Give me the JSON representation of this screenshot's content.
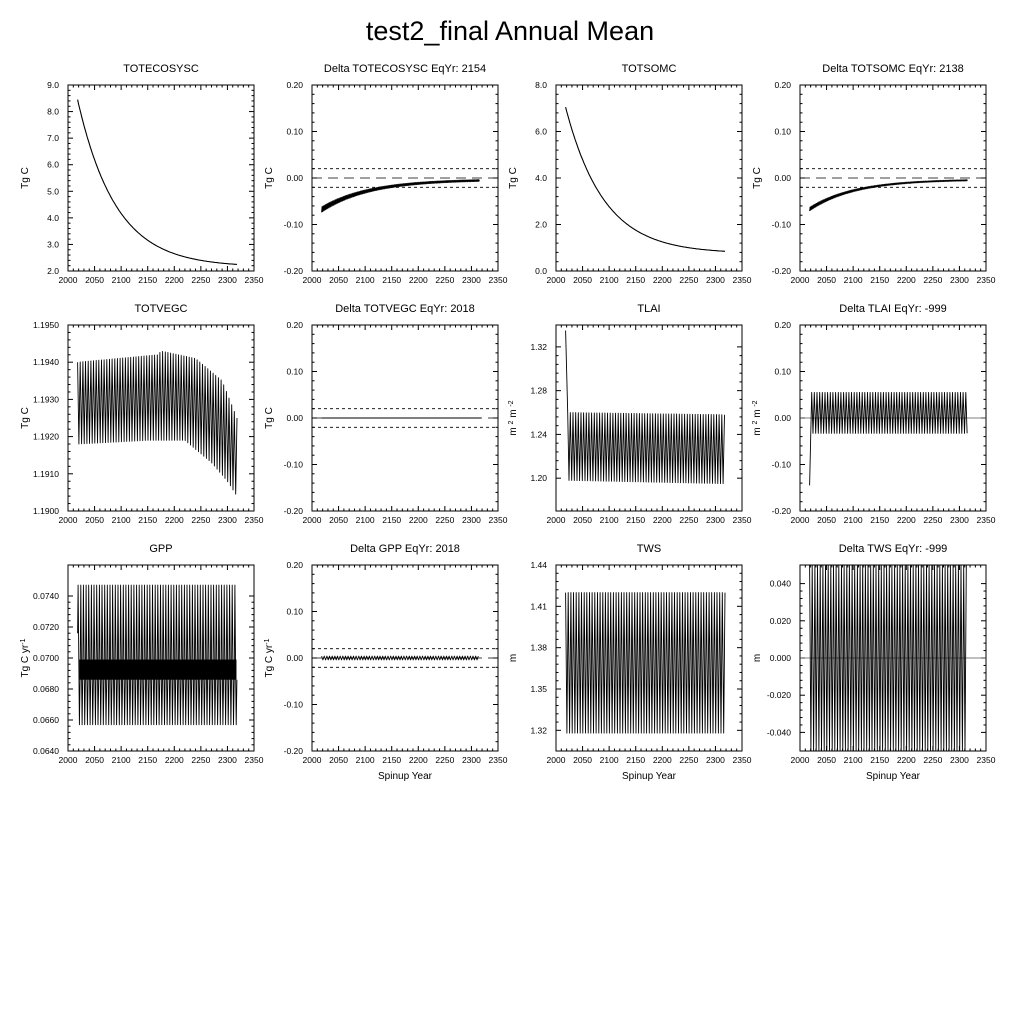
{
  "figure": {
    "title": "test2_final Annual Mean"
  },
  "chart_data": [
    {
      "type": "line",
      "title": "TOTECOSYSC",
      "ylabel": "Tg C",
      "xlabel": "",
      "xlim": [
        2000,
        2350
      ],
      "ylim": [
        2.0,
        9.0
      ],
      "xticks": [
        "2000",
        "2050",
        "2100",
        "2150",
        "2200",
        "2250",
        "2300",
        "2350"
      ],
      "yticks": [
        "2.0",
        "3.0",
        "4.0",
        "5.0",
        "6.0",
        "7.0",
        "8.0",
        "9.0"
      ],
      "series": [
        {
          "kind": "exp_decay",
          "x_start": 2018,
          "x_end": 2318,
          "y_start": 8.45,
          "y_end": 2.38,
          "asymptote": 2.15,
          "tau": 72
        }
      ]
    },
    {
      "type": "line",
      "title": "Delta TOTECOSYSC EqYr: 2154",
      "ylabel": "Tg C",
      "xlabel": "",
      "xlim": [
        2000,
        2350
      ],
      "ylim": [
        -0.2,
        0.2
      ],
      "xticks": [
        "2000",
        "2050",
        "2100",
        "2150",
        "2200",
        "2250",
        "2300",
        "2350"
      ],
      "yticks": [
        "-0.20",
        "-0.10",
        "0.00",
        "0.10",
        "0.20"
      ],
      "ref_lines": [
        0.02,
        0.0,
        -0.02
      ],
      "series": [
        {
          "kind": "decay_band",
          "x_start": 2018,
          "x_end": 2315,
          "y_start": -0.068,
          "y_end": -0.003,
          "tau": 90,
          "amp": 0.006
        }
      ]
    },
    {
      "type": "line",
      "title": "TOTSOMC",
      "ylabel": "Tg C",
      "xlabel": "",
      "xlim": [
        2000,
        2350
      ],
      "ylim": [
        0.0,
        8.0
      ],
      "xticks": [
        "2000",
        "2050",
        "2100",
        "2150",
        "2200",
        "2250",
        "2300",
        "2350"
      ],
      "yticks": [
        "0.0",
        "2.0",
        "4.0",
        "6.0",
        "8.0"
      ],
      "series": [
        {
          "kind": "exp_decay",
          "x_start": 2018,
          "x_end": 2318,
          "y_start": 7.05,
          "y_end": 0.98,
          "asymptote": 0.75,
          "tau": 72
        }
      ]
    },
    {
      "type": "line",
      "title": "Delta TOTSOMC EqYr: 2138",
      "ylabel": "Tg C",
      "xlabel": "",
      "xlim": [
        2000,
        2350
      ],
      "ylim": [
        -0.2,
        0.2
      ],
      "xticks": [
        "2000",
        "2050",
        "2100",
        "2150",
        "2200",
        "2250",
        "2300",
        "2350"
      ],
      "yticks": [
        "-0.20",
        "-0.10",
        "0.00",
        "0.10",
        "0.20"
      ],
      "ref_lines": [
        0.02,
        0.0,
        -0.02
      ],
      "series": [
        {
          "kind": "decay_band",
          "x_start": 2018,
          "x_end": 2315,
          "y_start": -0.067,
          "y_end": -0.003,
          "tau": 85,
          "amp": 0.004
        }
      ]
    },
    {
      "type": "line",
      "title": "TOTVEGC",
      "ylabel": "Tg C",
      "xlabel": "",
      "xlim": [
        2000,
        2350
      ],
      "ylim": [
        1.19,
        1.195
      ],
      "xticks": [
        "2000",
        "2050",
        "2100",
        "2150",
        "2200",
        "2250",
        "2300",
        "2350"
      ],
      "yticks": [
        "1.1900",
        "1.1910",
        "1.1920",
        "1.1930",
        "1.1940",
        "1.1950"
      ],
      "series": [
        {
          "kind": "sawtooth",
          "x_start": 2018,
          "x_end": 2318,
          "period": 5,
          "upper": [
            [
              2018,
              1.194
            ],
            [
              2170,
              1.1942
            ],
            [
              2175,
              1.1943
            ],
            [
              2240,
              1.1941
            ],
            [
              2290,
              1.1935
            ],
            [
              2318,
              1.1925
            ]
          ],
          "lower": [
            [
              2018,
              1.1918
            ],
            [
              2150,
              1.1919
            ],
            [
              2220,
              1.1919
            ],
            [
              2270,
              1.1913
            ],
            [
              2300,
              1.1908
            ],
            [
              2318,
              1.1904
            ]
          ]
        }
      ]
    },
    {
      "type": "line",
      "title": "Delta TOTVEGC EqYr: 2018",
      "ylabel": "Tg C",
      "xlabel": "",
      "xlim": [
        2000,
        2350
      ],
      "ylim": [
        -0.2,
        0.2
      ],
      "xticks": [
        "2000",
        "2050",
        "2100",
        "2150",
        "2200",
        "2250",
        "2300",
        "2350"
      ],
      "yticks": [
        "-0.20",
        "-0.10",
        "0.00",
        "0.10",
        "0.20"
      ],
      "ref_lines": [
        0.02,
        0.0,
        -0.02
      ],
      "series": [
        {
          "kind": "flat",
          "x_start": 2018,
          "x_end": 2318,
          "y": 0.0
        }
      ]
    },
    {
      "type": "line",
      "title": "TLAI",
      "ylabel": "m 2 m-2",
      "ylabel_parts": [
        "m",
        "2",
        "m",
        "-2"
      ],
      "xlabel": "",
      "xlim": [
        2000,
        2350
      ],
      "ylim": [
        1.17,
        1.34
      ],
      "xticks": [
        "2000",
        "2050",
        "2100",
        "2150",
        "2200",
        "2250",
        "2300",
        "2350"
      ],
      "yticks": [
        "1.20",
        "1.24",
        "1.28",
        "1.32"
      ],
      "ytick_values": [
        1.2,
        1.24,
        1.28,
        1.32
      ],
      "series": [
        {
          "kind": "sawtooth",
          "x_start": 2022,
          "x_end": 2318,
          "period": 5,
          "spike": [
            2018,
            1.335
          ],
          "upper": [
            [
              2022,
              1.26
            ],
            [
              2318,
              1.258
            ]
          ],
          "lower": [
            [
              2022,
              1.198
            ],
            [
              2318,
              1.195
            ]
          ]
        }
      ]
    },
    {
      "type": "line",
      "title": "Delta TLAI EqYr: -999",
      "ylabel": "m 2 m-2",
      "ylabel_parts": [
        "m",
        "2",
        "m",
        "-2"
      ],
      "xlabel": "",
      "xlim": [
        2000,
        2350
      ],
      "ylim": [
        -0.2,
        0.2
      ],
      "xticks": [
        "2000",
        "2050",
        "2100",
        "2150",
        "2200",
        "2250",
        "2300",
        "2350"
      ],
      "yticks": [
        "-0.20",
        "-0.10",
        "0.00",
        "0.10",
        "0.20"
      ],
      "ref_lines": [
        0.0
      ],
      "series": [
        {
          "kind": "sawtooth",
          "x_start": 2022,
          "x_end": 2315,
          "period": 5,
          "spike": [
            2018,
            -0.145
          ],
          "upper": [
            [
              2022,
              0.055
            ],
            [
              2315,
              0.055
            ]
          ],
          "lower": [
            [
              2022,
              -0.033
            ],
            [
              2315,
              -0.033
            ]
          ]
        }
      ]
    },
    {
      "type": "line",
      "title": "GPP",
      "ylabel": "Tg C yr-1",
      "ylabel_parts": [
        "Tg C yr",
        "-1"
      ],
      "xlabel": "",
      "xlim": [
        2000,
        2350
      ],
      "ylim": [
        0.064,
        0.076
      ],
      "xticks": [
        "2000",
        "2050",
        "2100",
        "2150",
        "2200",
        "2250",
        "2300",
        "2350"
      ],
      "yticks": [
        "0.0640",
        "0.0660",
        "0.0680",
        "0.0700",
        "0.0720",
        "0.0740"
      ],
      "series": [
        {
          "kind": "gpp",
          "x_start": 2018,
          "x_end": 2318,
          "period": 5,
          "upper": 0.0747,
          "lower": 0.0657,
          "band": [
            0.0686,
            0.0699
          ]
        }
      ]
    },
    {
      "type": "line",
      "title": "Delta GPP EqYr: 2018",
      "ylabel": "Tg C yr-1",
      "ylabel_parts": [
        "Tg C yr",
        "-1"
      ],
      "xlabel": "Spinup Year",
      "xlim": [
        2000,
        2350
      ],
      "ylim": [
        -0.2,
        0.2
      ],
      "xticks": [
        "2000",
        "2050",
        "2100",
        "2150",
        "2200",
        "2250",
        "2300",
        "2350"
      ],
      "yticks": [
        "-0.20",
        "-0.10",
        "0.00",
        "0.10",
        "0.20"
      ],
      "ref_lines": [
        0.02,
        0.0,
        -0.02
      ],
      "series": [
        {
          "kind": "sawtooth",
          "x_start": 2018,
          "x_end": 2315,
          "period": 5,
          "upper": [
            [
              2018,
              0.004
            ],
            [
              2315,
              0.004
            ]
          ],
          "lower": [
            [
              2018,
              -0.004
            ],
            [
              2315,
              -0.004
            ]
          ]
        }
      ]
    },
    {
      "type": "line",
      "title": "TWS",
      "ylabel": "m",
      "xlabel": "Spinup Year",
      "xlim": [
        2000,
        2350
      ],
      "ylim": [
        1.305,
        1.44
      ],
      "xticks": [
        "2000",
        "2050",
        "2100",
        "2150",
        "2200",
        "2250",
        "2300",
        "2350"
      ],
      "yticks": [
        "1.32",
        "1.35",
        "1.38",
        "1.41",
        "1.44"
      ],
      "ytick_values": [
        1.32,
        1.35,
        1.38,
        1.41,
        1.44
      ],
      "series": [
        {
          "kind": "sawtooth",
          "x_start": 2018,
          "x_end": 2318,
          "period": 5,
          "upper": [
            [
              2018,
              1.42
            ],
            [
              2318,
              1.42
            ]
          ],
          "lower": [
            [
              2018,
              1.318
            ],
            [
              2318,
              1.318
            ]
          ]
        }
      ]
    },
    {
      "type": "line",
      "title": "Delta TWS EqYr: -999",
      "ylabel": "m",
      "xlabel": "Spinup Year",
      "xlim": [
        2000,
        2350
      ],
      "ylim": [
        -0.05,
        0.05
      ],
      "xticks": [
        "2000",
        "2050",
        "2100",
        "2150",
        "2200",
        "2250",
        "2300",
        "2350"
      ],
      "yticks": [
        "-0.040",
        "-0.020",
        "0.000",
        "0.020",
        "0.040"
      ],
      "ytick_values": [
        -0.04,
        -0.02,
        0.0,
        0.02,
        0.04
      ],
      "ref_lines": [
        0.0
      ],
      "series": [
        {
          "kind": "sawtooth",
          "x_start": 2018,
          "x_end": 2315,
          "period": 5,
          "upper": [
            [
              2018,
              0.05
            ],
            [
              2315,
              0.05
            ]
          ],
          "lower": [
            [
              2018,
              -0.05
            ],
            [
              2315,
              -0.05
            ]
          ]
        }
      ]
    }
  ]
}
